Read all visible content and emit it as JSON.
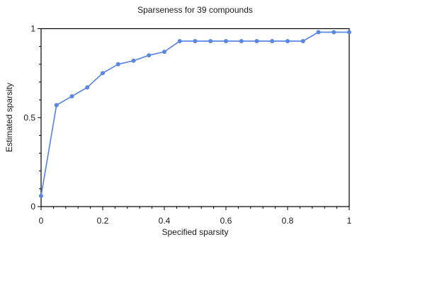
{
  "chart_data": {
    "type": "line",
    "title": "Sparseness for 39 compounds",
    "xlabel": "Specified sparsity",
    "ylabel": "Estimated sparsity",
    "xlim": [
      0,
      1
    ],
    "ylim": [
      0,
      1
    ],
    "grid": false,
    "legend": false,
    "x_major_ticks": [
      0,
      0.2,
      0.4,
      0.6,
      0.8,
      1
    ],
    "x_tick_labels": [
      "0",
      "0.2",
      "0.4",
      "0.6",
      "0.8",
      "1"
    ],
    "x_minor_divisions": 5,
    "y_major_ticks": [
      0,
      0.5,
      1
    ],
    "y_tick_labels": [
      "0",
      "0.5",
      "1"
    ],
    "y_minor_divisions": 5,
    "series": [
      {
        "name": "estimated-vs-specified-sparsity",
        "color": "#5b87e0",
        "marker": "circle",
        "x": [
          0,
          0.05,
          0.1,
          0.15,
          0.2,
          0.25,
          0.3,
          0.35,
          0.4,
          0.45,
          0.5,
          0.55,
          0.6,
          0.65,
          0.7,
          0.75,
          0.8,
          0.85,
          0.9,
          0.95,
          1.0
        ],
        "y": [
          0.06,
          0.57,
          0.62,
          0.67,
          0.75,
          0.8,
          0.82,
          0.85,
          0.87,
          0.93,
          0.93,
          0.93,
          0.93,
          0.93,
          0.93,
          0.93,
          0.93,
          0.93,
          0.98,
          0.98,
          0.98
        ]
      }
    ]
  }
}
